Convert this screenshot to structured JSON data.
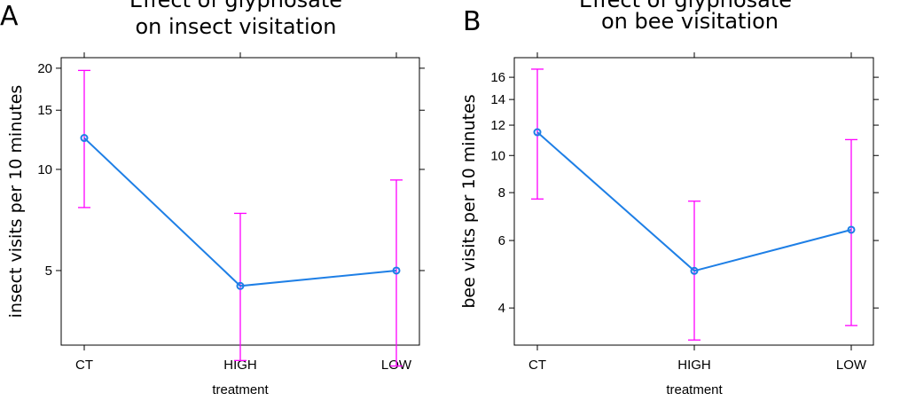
{
  "chart_data": [
    {
      "panel_label": "A",
      "type": "line",
      "title_line1": "Effect of glyphosate",
      "title_line2": "on insect visitation",
      "xlabel": "treatment",
      "ylabel": "insect visits per 10 minutes",
      "yscale": "log",
      "ylim": [
        3.0,
        21.5
      ],
      "yticks": [
        5,
        10,
        15,
        20
      ],
      "yticklabels": [
        "5",
        "10",
        "15",
        "20"
      ],
      "categories": [
        "CT",
        "HIGH",
        "LOW"
      ],
      "values": [
        12.4,
        4.5,
        5.0
      ],
      "lower": [
        7.7,
        2.7,
        2.6
      ],
      "upper": [
        19.7,
        7.4,
        9.3
      ]
    },
    {
      "panel_label": "B",
      "type": "line",
      "title_line1": "Effect of glyphosate",
      "title_line2": "on bee visitation",
      "xlabel": "treatment",
      "ylabel": "bee visits per 10 minutes",
      "yscale": "log",
      "ylim": [
        3.2,
        18.0
      ],
      "yticks": [
        4,
        6,
        8,
        10,
        12,
        14,
        16
      ],
      "yticklabels": [
        "4",
        "6",
        "8",
        "10",
        "12",
        "14",
        "16"
      ],
      "categories": [
        "CT",
        "HIGH",
        "LOW"
      ],
      "values": [
        11.5,
        5.0,
        6.4
      ],
      "lower": [
        7.7,
        3.3,
        3.6
      ],
      "upper": [
        16.8,
        7.6,
        11.0
      ]
    }
  ]
}
